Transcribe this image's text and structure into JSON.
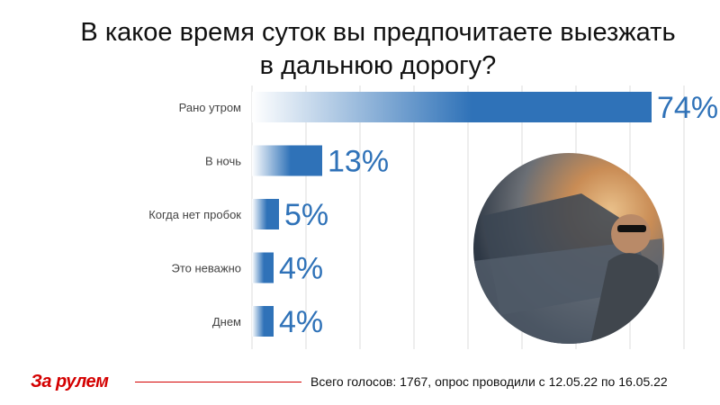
{
  "title_line1": "В какое время суток вы предпочитаете выезжать",
  "title_line2": "в дальнюю дорогу?",
  "logo_text": "За рулем",
  "footer_note": "Всего голосов: 1767, опрос проводили с 12.05.22 по 16.05.22",
  "colors": {
    "bar": "#2f72b8",
    "bar_fade": "#ffffff",
    "value_text": "#2f72b8",
    "label_text": "#444444",
    "grid": "#dddddd",
    "brand": "#d40000"
  },
  "chart_data": {
    "type": "bar",
    "orientation": "horizontal",
    "categories": [
      "Рано утром",
      "В ночь",
      "Когда нет пробок",
      "Это неважно",
      "Днем"
    ],
    "values": [
      74,
      13,
      5,
      4,
      4
    ],
    "value_labels": [
      "74%",
      "13%",
      "5%",
      "4%",
      "4%"
    ],
    "xlim": [
      0,
      80
    ],
    "grid": true
  }
}
